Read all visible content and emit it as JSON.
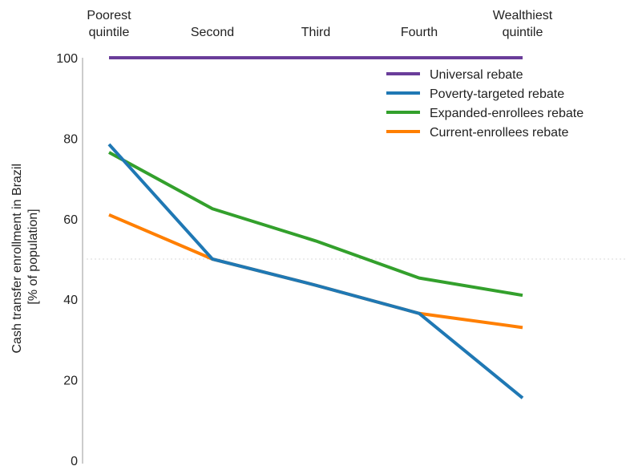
{
  "chart_data": {
    "type": "line",
    "categories": [
      [
        "Poorest",
        "quintile"
      ],
      [
        "Second"
      ],
      [
        "Third"
      ],
      [
        "Fourth"
      ],
      [
        "Wealthiest",
        "quintile"
      ]
    ],
    "x_axis_position": "top",
    "ylabel": [
      "Cash transfer enrollment in Brazil",
      "[% of population]"
    ],
    "ylim": [
      0,
      100
    ],
    "yticks": [
      0,
      20,
      40,
      60,
      80,
      100
    ],
    "reference_line": {
      "y": 50,
      "style": "dotted",
      "color": "#d9d9d9"
    },
    "grid": false,
    "legend_position": "top-right",
    "series": [
      {
        "name": "Universal rebate",
        "color": "#6a3d9a",
        "values": [
          100,
          100,
          100,
          100,
          100
        ]
      },
      {
        "name": "Poverty-targeted rebate",
        "color": "#1f78b4",
        "values": [
          78.5,
          50,
          43.5,
          36.5,
          15.5
        ]
      },
      {
        "name": "Expanded-enrollees rebate",
        "color": "#33a02c",
        "values": [
          76.5,
          62.5,
          54.5,
          45.3,
          41
        ]
      },
      {
        "name": "Current-enrollees rebate",
        "color": "#ff7f00",
        "values": [
          61,
          50,
          43.5,
          36.5,
          33
        ]
      }
    ]
  }
}
